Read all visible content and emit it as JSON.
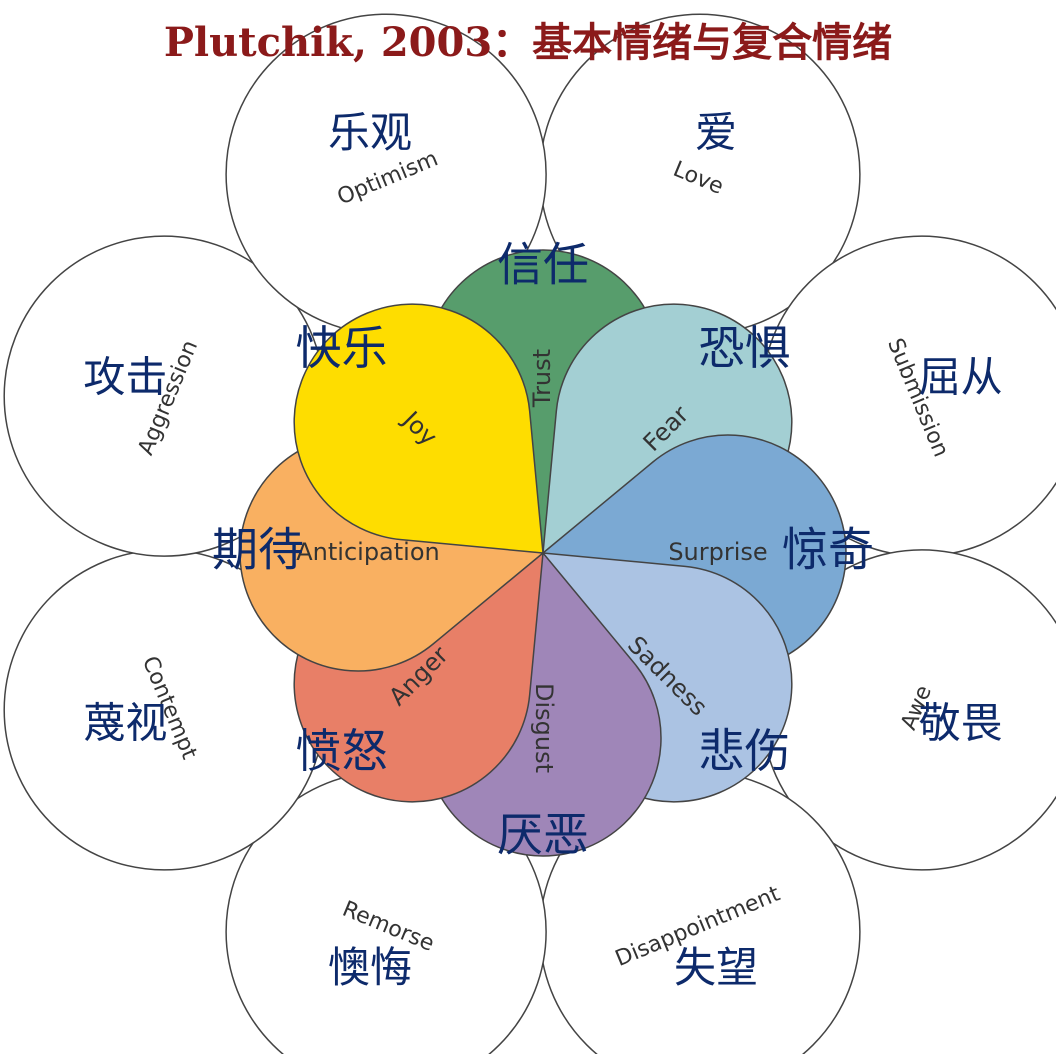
{
  "title": "Plutchik, 2003：基本情绪与复合情绪",
  "colors": {
    "title": "#8b1a1a",
    "chinese_text": "#0d2a6b",
    "english_text": "#333333",
    "outline": "#444444"
  },
  "primary_emotions": [
    {
      "id": "trust",
      "english": "Trust",
      "chinese": "信任",
      "color": "#579d6c"
    },
    {
      "id": "fear",
      "english": "Fear",
      "chinese": "恐惧",
      "color": "#a3cfd3"
    },
    {
      "id": "surprise",
      "english": "Surprise",
      "chinese": "惊奇",
      "color": "#7ba9d3"
    },
    {
      "id": "sadness",
      "english": "Sadness",
      "chinese": "悲伤",
      "color": "#abc3e3"
    },
    {
      "id": "disgust",
      "english": "Disgust",
      "chinese": "厌恶",
      "color": "#9f86b8"
    },
    {
      "id": "anger",
      "english": "Anger",
      "chinese": "愤怒",
      "color": "#e87f67"
    },
    {
      "id": "anticipation",
      "english": "Anticipation",
      "chinese": "期待",
      "color": "#f9b061"
    },
    {
      "id": "joy",
      "english": "Joy",
      "chinese": "快乐",
      "color": "#fedd00"
    }
  ],
  "dyads": [
    {
      "id": "love",
      "english": "Love",
      "chinese": "爱"
    },
    {
      "id": "submission",
      "english": "Submission",
      "chinese": "屈从"
    },
    {
      "id": "awe",
      "english": "Awe",
      "chinese": "敬畏"
    },
    {
      "id": "disappointment",
      "english": "Disappointment",
      "chinese": "失望"
    },
    {
      "id": "remorse",
      "english": "Remorse",
      "chinese": "懊悔"
    },
    {
      "id": "contempt",
      "english": "Contempt",
      "chinese": "蔑视"
    },
    {
      "id": "aggression",
      "english": "Aggression",
      "chinese": "攻击"
    },
    {
      "id": "optimism",
      "english": "Optimism",
      "chinese": "乐观"
    }
  ]
}
